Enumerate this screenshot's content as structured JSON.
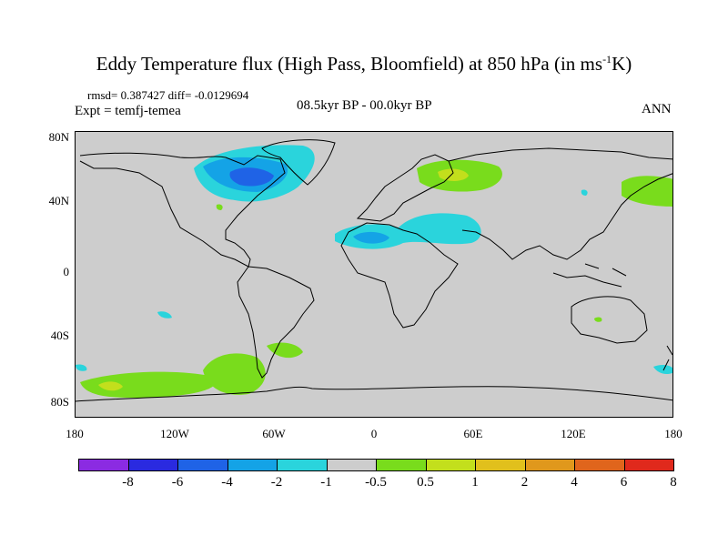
{
  "title": {
    "main": "Eddy Temperature flux (High Pass, Bloomfield) at 850 hPa (in ms",
    "sup": "-1",
    "tail": "K)"
  },
  "stats": "rmsd= 0.387427 diff= -0.0129694",
  "experiment": "Expt = temfj-temea",
  "period": "08.5kyr BP - 00.0kyr BP",
  "season": "ANN",
  "axes": {
    "y_ticks": [
      "80N",
      "40N",
      "0",
      "40S",
      "80S"
    ],
    "x_ticks": [
      "180",
      "120W",
      "60W",
      "0",
      "60E",
      "120E",
      "180"
    ]
  },
  "colorbar": {
    "colors": [
      "#8b2be2",
      "#2a2ae0",
      "#1f63e6",
      "#14a3e6",
      "#2ad4dc",
      "#cdcdcd",
      "#79dc1c",
      "#c3df1c",
      "#e1c01c",
      "#e0981c",
      "#e0651c",
      "#e0291c"
    ],
    "labels": [
      "-8",
      "-6",
      "-4",
      "-2",
      "-1",
      "-0.5",
      "0.5",
      "1",
      "2",
      "4",
      "6",
      "8"
    ]
  },
  "map": {
    "background": "#cdcdcd",
    "lon_range": [
      -180,
      180
    ],
    "lat_range": [
      -90,
      90
    ]
  }
}
